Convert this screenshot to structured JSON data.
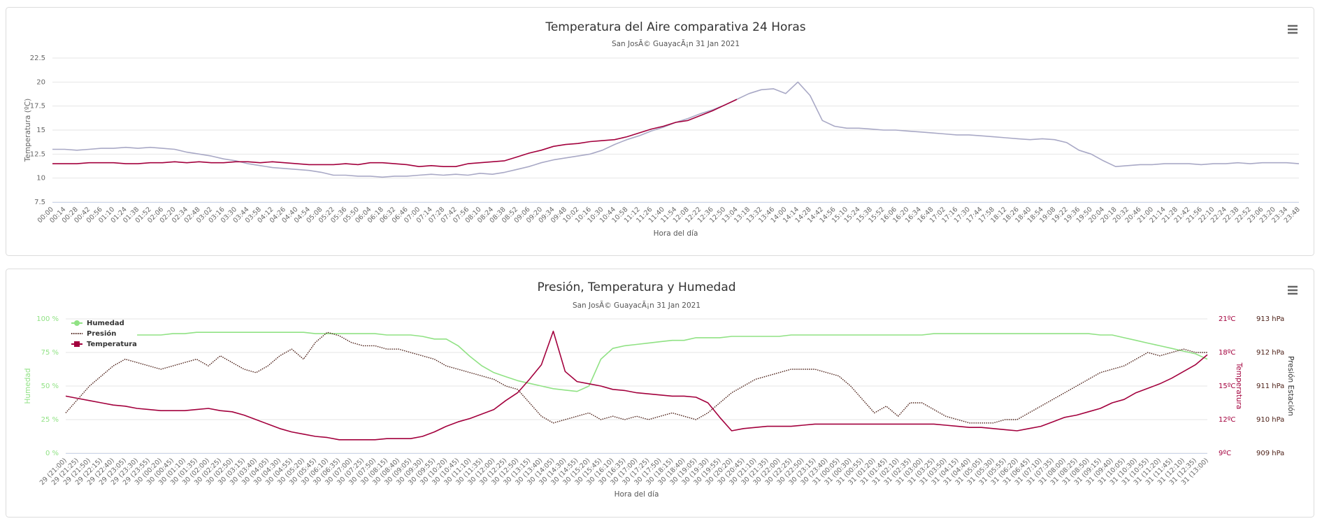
{
  "chart_data": [
    {
      "type": "line",
      "title": "Temperatura del Aire comparativa 24 Horas",
      "subtitle": "San JosÃ© GuayacÃ¡n 31 Jan 2021",
      "y_label": "Temperatura (ºC)",
      "x_label": "Hora del día",
      "categories": [
        "00:00",
        "00:14",
        "00:28",
        "00:42",
        "00:56",
        "01:10",
        "01:24",
        "01:38",
        "01:52",
        "02:06",
        "02:20",
        "02:34",
        "02:48",
        "03:02",
        "03:16",
        "03:30",
        "03:44",
        "03:58",
        "04:12",
        "04:26",
        "04:40",
        "04:54",
        "05:08",
        "05:22",
        "05:36",
        "05:50",
        "06:04",
        "06:18",
        "06:32",
        "06:46",
        "07:00",
        "07:14",
        "07:28",
        "07:42",
        "07:56",
        "08:10",
        "08:24",
        "08:38",
        "08:52",
        "09:06",
        "09:20",
        "09:34",
        "09:48",
        "10:02",
        "10:16",
        "10:30",
        "10:44",
        "10:58",
        "11:12",
        "11:26",
        "11:40",
        "11:54",
        "12:08",
        "12:22",
        "12:36",
        "12:50",
        "13:04",
        "13:18",
        "13:32",
        "13:46",
        "14:00",
        "14:14",
        "14:28",
        "14:42",
        "14:56",
        "15:10",
        "15:24",
        "15:38",
        "15:52",
        "16:06",
        "16:20",
        "16:34",
        "16:48",
        "17:02",
        "17:16",
        "17:30",
        "17:44",
        "17:58",
        "18:12",
        "18:26",
        "18:40",
        "18:54",
        "19:08",
        "19:22",
        "19:36",
        "19:50",
        "20:04",
        "20:18",
        "20:32",
        "20:46",
        "21:00",
        "21:14",
        "21:28",
        "21:42",
        "21:56",
        "22:10",
        "22:24",
        "22:38",
        "22:52",
        "23:06",
        "23:20",
        "23:34",
        "23:48"
      ],
      "ylim": [
        7.5,
        22.5
      ],
      "yticks": [
        7.5,
        10,
        12.5,
        15,
        17.5,
        20,
        22.5
      ],
      "grid": true,
      "series": [
        {
          "color": "#a9a9c6",
          "values": [
            13.0,
            13.0,
            12.9,
            13.0,
            13.1,
            13.1,
            13.2,
            13.1,
            13.2,
            13.1,
            13.0,
            12.7,
            12.5,
            12.3,
            12.0,
            11.8,
            11.5,
            11.3,
            11.1,
            11.0,
            10.9,
            10.8,
            10.6,
            10.3,
            10.3,
            10.2,
            10.2,
            10.1,
            10.2,
            10.2,
            10.3,
            10.4,
            10.3,
            10.4,
            10.3,
            10.5,
            10.4,
            10.6,
            10.9,
            11.2,
            11.6,
            11.9,
            12.1,
            12.3,
            12.5,
            12.9,
            13.5,
            14.0,
            14.4,
            14.9,
            15.3,
            15.8,
            16.2,
            16.7,
            17.1,
            17.6,
            18.2,
            18.8,
            19.2,
            19.3,
            18.8,
            20.0,
            18.6,
            16.0,
            15.4,
            15.2,
            15.2,
            15.1,
            15.0,
            15.0,
            14.9,
            14.8,
            14.7,
            14.6,
            14.5,
            14.5,
            14.4,
            14.3,
            14.2,
            14.1,
            14.0,
            14.1,
            14.0,
            13.7,
            12.9,
            12.5,
            11.8,
            11.2,
            11.3,
            11.4,
            11.4,
            11.5,
            11.5,
            11.5,
            11.4,
            11.5,
            11.5,
            11.6,
            11.5,
            11.6,
            11.6,
            11.6,
            11.5
          ]
        },
        {
          "color": "#a3003d",
          "values": [
            11.5,
            11.5,
            11.5,
            11.6,
            11.6,
            11.6,
            11.5,
            11.5,
            11.6,
            11.6,
            11.7,
            11.6,
            11.7,
            11.6,
            11.6,
            11.7,
            11.7,
            11.6,
            11.7,
            11.6,
            11.5,
            11.4,
            11.4,
            11.4,
            11.5,
            11.4,
            11.6,
            11.6,
            11.5,
            11.4,
            11.2,
            11.3,
            11.2,
            11.2,
            11.5,
            11.6,
            11.7,
            11.8,
            12.2,
            12.6,
            12.9,
            13.3,
            13.5,
            13.6,
            13.8,
            13.9,
            14.0,
            14.3,
            14.7,
            15.1,
            15.4,
            15.8,
            16.0,
            16.5,
            17.0,
            17.6,
            18.2,
            null,
            null,
            null,
            null,
            null,
            null,
            null,
            null,
            null,
            null,
            null,
            null,
            null,
            null,
            null,
            null,
            null,
            null,
            null,
            null,
            null,
            null,
            null,
            null,
            null,
            null,
            null,
            null,
            null,
            null,
            null,
            null,
            null,
            null,
            null,
            null,
            null,
            null,
            null,
            null,
            null,
            null,
            null,
            null,
            null,
            null
          ]
        }
      ]
    },
    {
      "type": "line",
      "title": "Presión, Temperatura y Humedad",
      "subtitle": "San JosÃ© GuayacÃ¡n 31 Jan 2021",
      "x_label": "Hora del día",
      "y_label": "Humedad",
      "y2_label": "Temperatura",
      "y3_label": "Presión Estación",
      "categories": [
        "29 (21:00)",
        "29 (21:25)",
        "29 (21:50)",
        "29 (22:15)",
        "29 (22:40)",
        "29 (23:05)",
        "29 (23:30)",
        "29 (23:55)",
        "30 (00:20)",
        "30 (00:45)",
        "30 (01:10)",
        "30 (01:35)",
        "30 (02:00)",
        "30 (02:25)",
        "30 (02:50)",
        "30 (03:15)",
        "30 (03:40)",
        "30 (04:05)",
        "30 (04:30)",
        "30 (04:55)",
        "30 (05:20)",
        "30 (05:45)",
        "30 (06:10)",
        "30 (06:35)",
        "30 (07:00)",
        "30 (07:25)",
        "30 (07:50)",
        "30 (08:15)",
        "30 (08:40)",
        "30 (09:05)",
        "30 (09:30)",
        "30 (09:55)",
        "30 (10:20)",
        "30 (10:45)",
        "30 (11:10)",
        "30 (11:35)",
        "30 (12:00)",
        "30 (12:25)",
        "30 (12:50)",
        "30 (13:15)",
        "30 (13:40)",
        "30 (14:05)",
        "30 (14:30)",
        "30 (14:55)",
        "30 (15:20)",
        "30 (15:45)",
        "30 (16:10)",
        "30 (16:35)",
        "30 (17:00)",
        "30 (17:25)",
        "30 (17:50)",
        "30 (18:15)",
        "30 (18:40)",
        "30 (19:05)",
        "30 (19:30)",
        "30 (19:55)",
        "30 (20:20)",
        "30 (20:45)",
        "30 (21:10)",
        "30 (21:35)",
        "30 (22:00)",
        "30 (22:25)",
        "30 (22:50)",
        "30 (23:15)",
        "30 (23:40)",
        "31 (00:05)",
        "31 (00:30)",
        "31 (00:55)",
        "31 (01:20)",
        "31 (01:45)",
        "31 (02:10)",
        "31 (02:35)",
        "31 (03:00)",
        "31 (03:25)",
        "31 (03:50)",
        "31 (04:15)",
        "31 (04:40)",
        "31 (05:05)",
        "31 (05:30)",
        "31 (05:55)",
        "31 (06:20)",
        "31 (06:45)",
        "31 (07:10)",
        "31 (07:35)",
        "31 (08:00)",
        "31 (08:25)",
        "31 (08:50)",
        "31 (09:15)",
        "31 (09:40)",
        "31 (10:05)",
        "31 (10:30)",
        "31 (10:55)",
        "31 (11:20)",
        "31 (11:45)",
        "31 (12:10)",
        "31 (12:35)",
        "31 (13:00)"
      ],
      "ylim": [
        0,
        100
      ],
      "yticks": [
        {
          "value": 0,
          "label": "0 %"
        },
        {
          "value": 25,
          "label": "25 %"
        },
        {
          "value": 50,
          "label": "50 %"
        },
        {
          "value": 75,
          "label": "75 %"
        },
        {
          "value": 100,
          "label": "100 %"
        }
      ],
      "y2lim": [
        9,
        21
      ],
      "y2ticks": [
        {
          "value": 9,
          "label": "9ºC"
        },
        {
          "value": 12,
          "label": "12ºC"
        },
        {
          "value": 15,
          "label": "15ºC"
        },
        {
          "value": 18,
          "label": "18ºC"
        },
        {
          "value": 21,
          "label": "21ºC"
        }
      ],
      "y3lim": [
        909,
        913
      ],
      "y3ticks": [
        {
          "value": 909,
          "label": "909 hPa"
        },
        {
          "value": 910,
          "label": "910 hPa"
        },
        {
          "value": 911,
          "label": "911 hPa"
        },
        {
          "value": 912,
          "label": "912 hPa"
        },
        {
          "value": 913,
          "label": "913 hPa"
        }
      ],
      "grid": true,
      "legend": "top-left",
      "series": [
        {
          "name": "Humedad",
          "color": "#90e284",
          "axis": "y",
          "marker": "circle",
          "values": [
            null,
            null,
            null,
            null,
            null,
            null,
            88,
            88,
            88,
            89,
            89,
            90,
            90,
            90,
            90,
            90,
            90,
            90,
            90,
            90,
            90,
            89,
            89,
            89,
            89,
            89,
            89,
            88,
            88,
            88,
            87,
            85,
            85,
            80,
            72,
            65,
            60,
            57,
            54,
            52,
            50,
            48,
            47,
            46,
            50,
            70,
            78,
            80,
            81,
            82,
            83,
            84,
            84,
            86,
            86,
            86,
            87,
            87,
            87,
            87,
            87,
            88,
            88,
            88,
            88,
            88,
            88,
            88,
            88,
            88,
            88,
            88,
            88,
            89,
            89,
            89,
            89,
            89,
            89,
            89,
            89,
            89,
            89,
            89,
            89,
            89,
            89,
            88,
            88,
            86,
            84,
            82,
            80,
            78,
            76,
            74,
            70
          ]
        },
        {
          "name": "Presión",
          "color": "#4a1d14",
          "axis": "y3",
          "dash": "dot",
          "values": [
            910.2,
            910.6,
            911.0,
            911.3,
            911.6,
            911.8,
            911.7,
            911.6,
            911.5,
            911.6,
            911.7,
            911.8,
            911.6,
            911.9,
            911.7,
            911.5,
            911.4,
            911.6,
            911.9,
            912.1,
            911.8,
            912.3,
            912.6,
            912.5,
            912.3,
            912.2,
            912.2,
            912.1,
            912.1,
            912.0,
            911.9,
            911.8,
            911.6,
            911.5,
            911.4,
            911.3,
            911.2,
            911.0,
            910.9,
            910.5,
            910.1,
            909.9,
            910.0,
            910.1,
            910.2,
            910.0,
            910.1,
            910.0,
            910.1,
            910.0,
            910.1,
            910.2,
            910.1,
            910.0,
            910.2,
            910.5,
            910.8,
            911.0,
            911.2,
            911.3,
            911.4,
            911.5,
            911.5,
            911.5,
            911.4,
            911.3,
            911.0,
            910.6,
            910.2,
            910.4,
            910.1,
            910.5,
            910.5,
            910.3,
            910.1,
            910.0,
            909.9,
            909.9,
            909.9,
            910.0,
            910.0,
            910.2,
            910.4,
            910.6,
            910.8,
            911.0,
            911.2,
            911.4,
            911.5,
            911.6,
            911.8,
            912.0,
            911.9,
            912.0,
            912.1,
            912.0,
            912.0
          ]
        },
        {
          "name": "Temperatura",
          "color": "#a3003d",
          "axis": "y2",
          "marker": "square",
          "values": [
            14.1,
            13.9,
            13.7,
            13.5,
            13.3,
            13.2,
            13.0,
            12.9,
            12.8,
            12.8,
            12.8,
            12.9,
            13.0,
            12.8,
            12.7,
            12.4,
            12.0,
            11.6,
            11.2,
            10.9,
            10.7,
            10.5,
            10.4,
            10.2,
            10.2,
            10.2,
            10.2,
            10.3,
            10.3,
            10.3,
            10.5,
            10.9,
            11.4,
            11.8,
            12.1,
            12.5,
            12.9,
            13.7,
            14.4,
            15.6,
            16.9,
            19.9,
            16.3,
            15.4,
            15.2,
            15.0,
            14.7,
            14.6,
            14.4,
            14.3,
            14.2,
            14.1,
            14.1,
            14.0,
            13.5,
            12.2,
            11.0,
            11.2,
            11.3,
            11.4,
            11.4,
            11.4,
            11.5,
            11.6,
            11.6,
            11.6,
            11.6,
            11.6,
            11.6,
            11.6,
            11.6,
            11.6,
            11.6,
            11.6,
            11.5,
            11.4,
            11.3,
            11.3,
            11.2,
            11.1,
            11.0,
            11.2,
            11.4,
            11.8,
            12.2,
            12.4,
            12.7,
            13.0,
            13.5,
            13.8,
            14.4,
            14.8,
            15.2,
            15.7,
            16.3,
            16.9,
            17.8
          ]
        }
      ]
    }
  ]
}
